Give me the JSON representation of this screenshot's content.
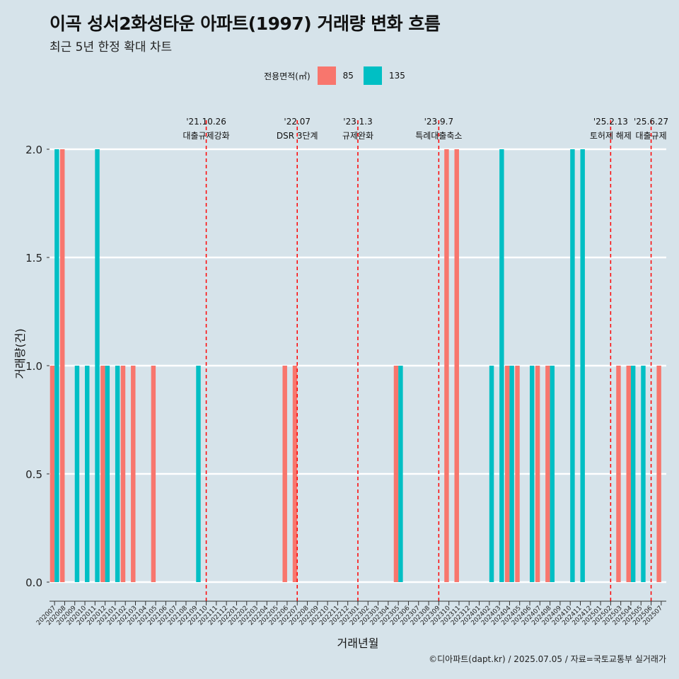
{
  "title": "이곡 성서2화성타운 아파트(1997) 거래량 변화 흐름",
  "subtitle": "최근 5년 한정 확대 차트",
  "caption": "©디아파트(dapt.kr) / 2025.07.05 / 자료=국토교통부 실거래가",
  "legend": {
    "title": "전용면적(㎡)",
    "items": [
      {
        "label": "85",
        "color": "#f8766d"
      },
      {
        "label": "135",
        "color": "#00bfc4"
      }
    ]
  },
  "chart_data": {
    "type": "bar",
    "xlabel": "거래년월",
    "ylabel": "거래량(건)",
    "ylim": [
      0,
      2
    ],
    "yticks": [
      "0.0",
      "0.5",
      "1.0",
      "1.5",
      "2.0"
    ],
    "grid": true,
    "legend_position": "top",
    "categories": [
      "202007",
      "202008",
      "202009",
      "202010",
      "202011",
      "202012",
      "202101",
      "202102",
      "202103",
      "202104",
      "202105",
      "202106",
      "202107",
      "202108",
      "202109",
      "202110",
      "202111",
      "202112",
      "202201",
      "202202",
      "202203",
      "202204",
      "202205",
      "202206",
      "202207",
      "202208",
      "202209",
      "202210",
      "202211",
      "202212",
      "202301",
      "202302",
      "202303",
      "202304",
      "202305",
      "202306",
      "202307",
      "202308",
      "202309",
      "202310",
      "202311",
      "202312",
      "202401",
      "202402",
      "202403",
      "202404",
      "202405",
      "202406",
      "202407",
      "202408",
      "202409",
      "202410",
      "202411",
      "202412",
      "202501",
      "202502",
      "202503",
      "202504",
      "202505",
      "202506",
      "202507"
    ],
    "series": [
      {
        "name": "85",
        "color": "#f8766d",
        "values": [
          1,
          2,
          0,
          0,
          0,
          1,
          0,
          1,
          1,
          0,
          1,
          0,
          0,
          0,
          0,
          0,
          0,
          0,
          0,
          0,
          0,
          0,
          0,
          1,
          1,
          0,
          0,
          0,
          0,
          0,
          0,
          0,
          0,
          0,
          1,
          0,
          0,
          0,
          0,
          2,
          2,
          0,
          0,
          0,
          0,
          1,
          1,
          0,
          1,
          1,
          0,
          0,
          0,
          0,
          0,
          0,
          1,
          1,
          0,
          0,
          1
        ]
      },
      {
        "name": "135",
        "color": "#00bfc4",
        "values": [
          2,
          0,
          1,
          1,
          2,
          1,
          1,
          0,
          0,
          0,
          0,
          0,
          0,
          0,
          1,
          0,
          0,
          0,
          0,
          0,
          0,
          0,
          0,
          0,
          0,
          0,
          0,
          0,
          0,
          0,
          0,
          0,
          0,
          0,
          1,
          0,
          0,
          0,
          0,
          0,
          0,
          0,
          0,
          1,
          2,
          1,
          0,
          1,
          0,
          1,
          0,
          2,
          2,
          0,
          0,
          0,
          0,
          1,
          1,
          0,
          0
        ]
      }
    ],
    "annotations": [
      {
        "date": "'21.10.26",
        "label": "대출규제강화",
        "month": "202110"
      },
      {
        "date": "'22.07",
        "label": "DSR 3단계",
        "month": "202207"
      },
      {
        "date": "'23.1.3",
        "label": "규제완화",
        "month": "202301"
      },
      {
        "date": "'23.9.7",
        "label": "특례대출축소",
        "month": "202309"
      },
      {
        "date": "'25.2.13",
        "label": "토허제 해제",
        "month": "202502"
      },
      {
        "date": "'25.6.27",
        "label": "대출규제",
        "month": "202506"
      }
    ]
  }
}
